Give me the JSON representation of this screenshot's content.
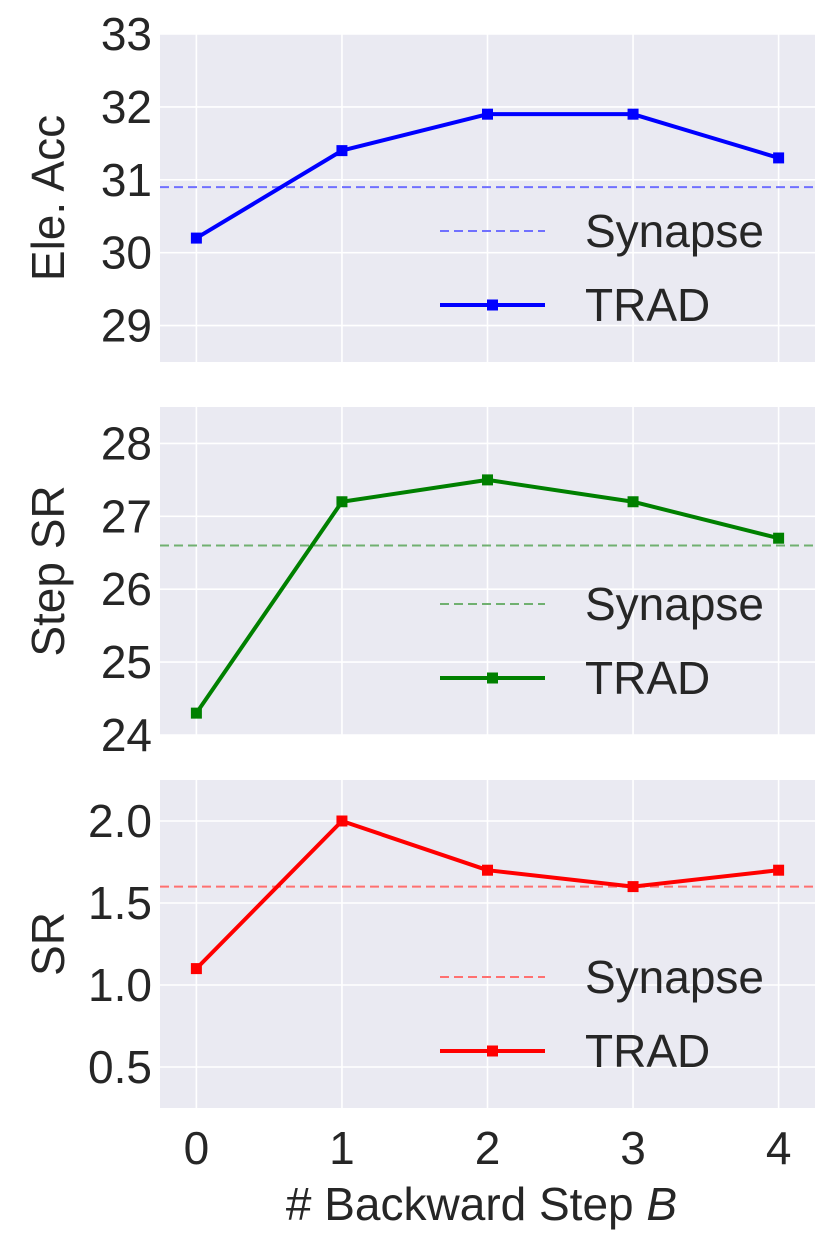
{
  "chart_data": [
    {
      "type": "line",
      "x": [
        0,
        1,
        2,
        3,
        4
      ],
      "ylabel": "Ele. Acc",
      "ylim": [
        28.5,
        33
      ],
      "yticks": [
        29,
        30,
        31,
        32,
        33
      ],
      "ytick_labels": [
        "29",
        "30",
        "31",
        "32",
        "33"
      ],
      "grid": true,
      "legend": "lower-right",
      "baseline": {
        "name": "Synapse",
        "value": 30.9,
        "color": "#7070ff",
        "style": "dashed"
      },
      "series": [
        {
          "name": "TRAD",
          "color": "#0000ff",
          "marker": "square",
          "values": [
            30.2,
            31.4,
            31.9,
            31.9,
            31.3
          ]
        }
      ]
    },
    {
      "type": "line",
      "x": [
        0,
        1,
        2,
        3,
        4
      ],
      "ylabel": "Step SR",
      "ylim": [
        24,
        28.5
      ],
      "yticks": [
        24,
        25,
        26,
        27,
        28
      ],
      "ytick_labels": [
        "24",
        "25",
        "26",
        "27",
        "28"
      ],
      "grid": true,
      "legend": "lower-right",
      "baseline": {
        "name": "Synapse",
        "value": 26.6,
        "color": "#70b070",
        "style": "dashed"
      },
      "series": [
        {
          "name": "TRAD",
          "color": "#008000",
          "marker": "square",
          "values": [
            24.3,
            27.2,
            27.5,
            27.2,
            26.7
          ]
        }
      ]
    },
    {
      "type": "line",
      "x": [
        0,
        1,
        2,
        3,
        4
      ],
      "xlabel": "# Backward Step",
      "xlabel_var": "B",
      "xtick_labels": [
        "0",
        "1",
        "2",
        "3",
        "4"
      ],
      "ylabel": "SR",
      "ylim": [
        0.25,
        2.25
      ],
      "yticks": [
        0.5,
        1.0,
        1.5,
        2.0
      ],
      "ytick_labels": [
        "0.5",
        "1.0",
        "1.5",
        "2.0"
      ],
      "grid": true,
      "legend": "lower-right",
      "baseline": {
        "name": "Synapse",
        "value": 1.6,
        "color": "#ff7070",
        "style": "dashed"
      },
      "series": [
        {
          "name": "TRAD",
          "color": "#ff0000",
          "marker": "square",
          "values": [
            1.1,
            2.0,
            1.7,
            1.6,
            1.7
          ]
        }
      ]
    }
  ]
}
